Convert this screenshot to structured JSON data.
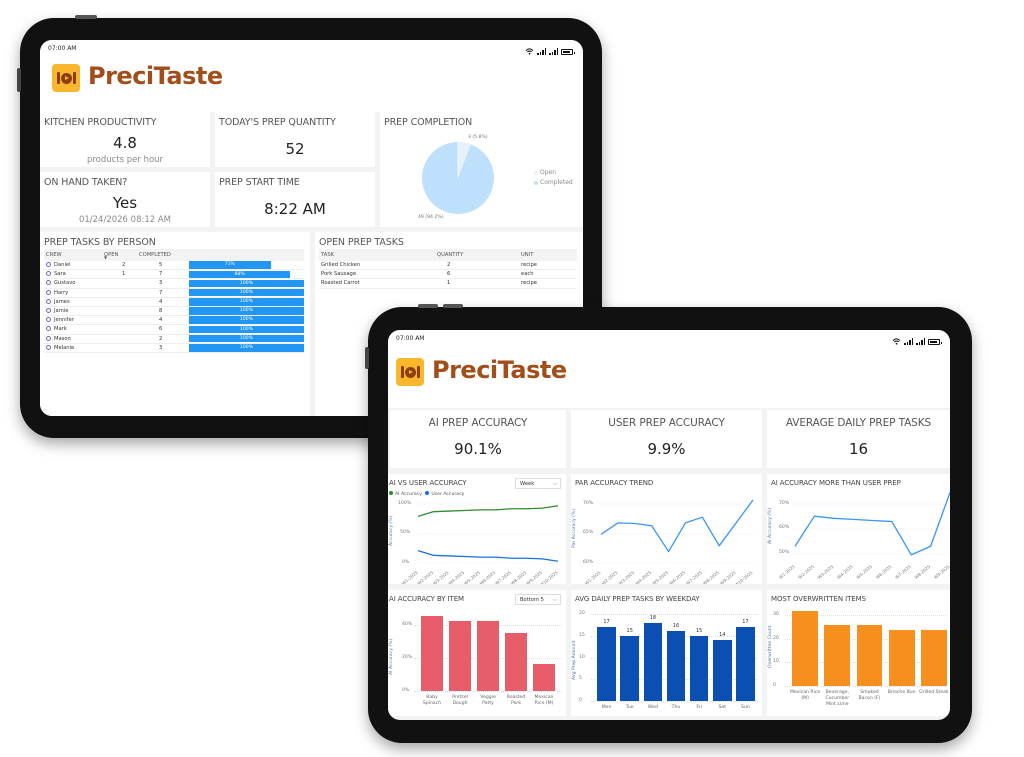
{
  "brand": {
    "name": "PreciTaste",
    "logo_icon": "fork-plate-knife-icon",
    "logo_color": "#f9b72d",
    "name_color": "#a14e1a"
  },
  "status_bar": {
    "time": "07:00 AM",
    "icons": [
      "wifi-icon",
      "signal-icon",
      "signal-icon",
      "battery-icon"
    ]
  },
  "tablet1": {
    "kpis": {
      "kitchen_productivity": {
        "title": "KITCHEN PRODUCTIVITY",
        "value": "4.8",
        "sub": "products per hour"
      },
      "todays_prep_quantity": {
        "title": "TODAY'S PREP QUANTITY",
        "value": "52"
      },
      "on_hand_taken": {
        "title": "ON HAND TAKEN?",
        "value": "Yes",
        "sub": "01/24/2026 08:12 AM"
      },
      "prep_start_time": {
        "title": "PREP START TIME",
        "value": "8:22 AM"
      }
    },
    "prep_completion": {
      "title": "PREP COMPLETION",
      "open_label": "3 (5.8%)",
      "completed_label": "49 (94.2%)",
      "legend": [
        "Open",
        "Completed"
      ],
      "colors": {
        "open": "#e6f1fc",
        "completed": "#bfe0fd"
      }
    },
    "prep_tasks_by_person": {
      "title": "PREP TASKS BY PERSON",
      "columns": [
        "CREW",
        "OPEN",
        "COMPLETED",
        ""
      ],
      "rows": [
        {
          "crew": "Daniel",
          "open": "2",
          "completed": "5",
          "pct": "71%",
          "pct_num": 71
        },
        {
          "crew": "Sara",
          "open": "1",
          "completed": "7",
          "pct": "88%",
          "pct_num": 88
        },
        {
          "crew": "Gustavo",
          "open": "",
          "completed": "3",
          "pct": "100%",
          "pct_num": 100
        },
        {
          "crew": "Harry",
          "open": "",
          "completed": "7",
          "pct": "100%",
          "pct_num": 100
        },
        {
          "crew": "James",
          "open": "",
          "completed": "4",
          "pct": "100%",
          "pct_num": 100
        },
        {
          "crew": "Jamie",
          "open": "",
          "completed": "8",
          "pct": "100%",
          "pct_num": 100
        },
        {
          "crew": "Jennifer",
          "open": "",
          "completed": "4",
          "pct": "100%",
          "pct_num": 100
        },
        {
          "crew": "Mark",
          "open": "",
          "completed": "6",
          "pct": "100%",
          "pct_num": 100
        },
        {
          "crew": "Mason",
          "open": "",
          "completed": "2",
          "pct": "100%",
          "pct_num": 100
        },
        {
          "crew": "Melanie",
          "open": "",
          "completed": "3",
          "pct": "100%",
          "pct_num": 100
        }
      ]
    },
    "open_prep_tasks": {
      "title": "OPEN PREP TASKS",
      "columns": [
        "TASK",
        "QUANTITY",
        "UNIT"
      ],
      "rows": [
        {
          "task": "Grilled Chicken",
          "quantity": "2",
          "unit": "recipe"
        },
        {
          "task": "Pork Sausage",
          "quantity": "6",
          "unit": "each"
        },
        {
          "task": "Roasted Carrot",
          "quantity": "1",
          "unit": "recipe"
        }
      ]
    }
  },
  "tablet2": {
    "kpis": {
      "ai_prep_accuracy": {
        "title": "AI PREP ACCURACY",
        "value": "90.1%"
      },
      "user_prep_accuracy": {
        "title": "USER PREP ACCURACY",
        "value": "9.9%"
      },
      "average_daily_prep_tasks": {
        "title": "AVERAGE DAILY PREP TASKS",
        "value": "16"
      }
    },
    "ai_vs_user": {
      "title": "AI VS USER ACCURACY",
      "dropdown": "Week",
      "legend": [
        "AI Accuracy",
        "User Accuracy"
      ],
      "ytitle": "Accuracy (%)"
    },
    "par_trend": {
      "title": "PAR ACCURACY TREND",
      "ytitle": "Par Accuracy (%)"
    },
    "ai_more_than_user": {
      "title": "AI ACCURACY MORE THAN USER PREP",
      "ytitle": "AI Accuracy (%)"
    },
    "ai_by_item": {
      "title": "AI ACCURACY BY ITEM",
      "dropdown": "Bottom 5",
      "ytitle": "AI Accuracy (%)"
    },
    "avg_by_weekday": {
      "title": "AVG DAILY PREP TASKS BY WEEKDAY",
      "ytitle": "Avg Prep Amount"
    },
    "most_overwritten": {
      "title": "MOST OVERWRITTEN ITEMS",
      "ytitle": "Overwritten Count"
    }
  },
  "chart_data": [
    {
      "type": "pie",
      "title": "PREP COMPLETION",
      "categories": [
        "Open",
        "Completed"
      ],
      "values": [
        3,
        49
      ],
      "labels": [
        "3 (5.8%)",
        "49 (94.2%)"
      ],
      "legend_position": "right"
    },
    {
      "type": "line",
      "title": "AI VS USER ACCURACY",
      "x": [
        "W1-2025",
        "W2-2025",
        "W3-2025",
        "W4-2025",
        "W5-2025",
        "W6-2025",
        "W7-2025",
        "W8-2025",
        "W9-2025",
        "W10-2025"
      ],
      "series": [
        {
          "name": "AI Accuracy",
          "color": "#2e8b2e",
          "values": [
            79,
            87,
            88,
            89,
            90,
            90,
            92,
            92,
            93,
            97
          ]
        },
        {
          "name": "User Accuracy",
          "color": "#1a6fe0",
          "values": [
            21,
            13,
            12,
            11,
            10,
            10,
            8,
            8,
            7,
            3
          ]
        }
      ],
      "yticks": [
        "0%",
        "50%",
        "100%"
      ],
      "ylim": [
        0,
        100
      ],
      "ylabel": "Accuracy (%)",
      "legend_position": "top-left"
    },
    {
      "type": "line",
      "title": "PAR ACCURACY TREND",
      "x": [
        "W1-2025",
        "W2-2025",
        "W3-2025",
        "W4-2025",
        "W5-2025",
        "W6-2025",
        "W7-2025",
        "W8-2025",
        "W9-2025",
        "W10-2025"
      ],
      "series": [
        {
          "name": "Par Accuracy",
          "color": "#3a96f5",
          "values": [
            65,
            67,
            66.9,
            66.5,
            62,
            67,
            68,
            63,
            67,
            71
          ]
        }
      ],
      "yticks": [
        "60%",
        "65%",
        "70%"
      ],
      "ylim": [
        60,
        71
      ],
      "ylabel": "Par Accuracy (%)"
    },
    {
      "type": "line",
      "title": "AI ACCURACY MORE THAN USER PREP",
      "x": [
        "W1-2025",
        "W2-2025",
        "W3-2025",
        "W4-2025",
        "W5-2025",
        "W6-2025",
        "W7-2025",
        "W8-2025",
        "W9-2025"
      ],
      "series": [
        {
          "name": "AI Accuracy",
          "color": "#3a96f5",
          "values": [
            50,
            64,
            63,
            62.5,
            62,
            61.5,
            46,
            50,
            75
          ]
        }
      ],
      "yticks": [
        "50%",
        "60%",
        "70%"
      ],
      "ylim": [
        45,
        72
      ],
      "ylabel": "AI Accuracy (%)"
    },
    {
      "type": "bar",
      "title": "AI ACCURACY BY ITEM",
      "categories": [
        "Baby Spinach",
        "Pretzel Dough",
        "Veggie Patty",
        "Roasted Pork",
        "Mexican Rice (M)"
      ],
      "values": [
        45,
        42,
        42,
        35,
        16
      ],
      "color": "#e85d6a",
      "yticks": [
        "0%",
        "20%",
        "40%"
      ],
      "ylim": [
        0,
        50
      ],
      "ylabel": "AI Accuracy (%)"
    },
    {
      "type": "bar",
      "title": "AVG DAILY PREP TASKS BY WEEKDAY",
      "categories": [
        "Mon",
        "Tue",
        "Wed",
        "Thu",
        "Fri",
        "Sat",
        "Sun"
      ],
      "values": [
        17,
        15,
        18,
        16,
        15,
        14,
        17
      ],
      "color": "#0b4fb3",
      "yticks": [
        "0",
        "5",
        "10",
        "15",
        "20"
      ],
      "ylim": [
        0,
        20
      ],
      "ylabel": "Avg Prep Amount"
    },
    {
      "type": "bar",
      "title": "MOST OVERWRITTEN ITEMS",
      "categories": [
        "Mexican Rice (M)",
        "Beverage, Cucumber Mint Lime",
        "Smoked Bacon (F)",
        "Brioche Bun",
        "Grilled Steak"
      ],
      "values": [
        32,
        26,
        26,
        24,
        24
      ],
      "color": "#f5901e",
      "yticks": [
        "0",
        "10",
        "20",
        "30"
      ],
      "ylim": [
        0,
        34
      ],
      "ylabel": "Overwritten Count"
    }
  ]
}
